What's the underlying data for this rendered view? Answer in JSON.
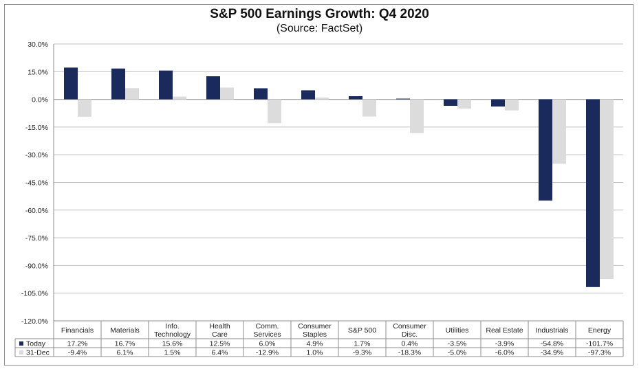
{
  "chart_data": {
    "type": "bar",
    "title": "S&P 500 Earnings Growth: Q4 2020",
    "subtitle": "(Source: FactSet)",
    "categories": [
      [
        "Financials"
      ],
      [
        "Materials"
      ],
      [
        "Info.",
        "Technology"
      ],
      [
        "Health",
        "Care"
      ],
      [
        "Comm.",
        "Services"
      ],
      [
        "Consumer",
        "Staples"
      ],
      [
        "S&P 500"
      ],
      [
        "Consumer",
        "Disc."
      ],
      [
        "Utilities"
      ],
      [
        "Real Estate"
      ],
      [
        "Industrials"
      ],
      [
        "Energy"
      ]
    ],
    "series": [
      {
        "name": "Today",
        "color": "#1b2a5c",
        "values": [
          17.2,
          16.7,
          15.6,
          12.5,
          6.0,
          4.9,
          1.7,
          0.4,
          -3.5,
          -3.9,
          -54.8,
          -101.7
        ],
        "labels": [
          "17.2%",
          "16.7%",
          "15.6%",
          "12.5%",
          "6.0%",
          "4.9%",
          "1.7%",
          "0.4%",
          "-3.5%",
          "-3.9%",
          "-54.8%",
          "-101.7%"
        ]
      },
      {
        "name": "31-Dec",
        "color": "#dcdcdc",
        "values": [
          -9.4,
          6.1,
          1.5,
          6.4,
          -12.9,
          1.0,
          -9.3,
          -18.3,
          -5.0,
          -6.0,
          -34.9,
          -97.3
        ],
        "labels": [
          "-9.4%",
          "6.1%",
          "1.5%",
          "6.4%",
          "-12.9%",
          "1.0%",
          "-9.3%",
          "-18.3%",
          "-5.0%",
          "-6.0%",
          "-34.9%",
          "-97.3%"
        ]
      }
    ],
    "ylim": [
      -120,
      30
    ],
    "ytick_step": 15,
    "ytick_labels": [
      "30.0%",
      "15.0%",
      "0.0%",
      "-15.0%",
      "-30.0%",
      "-45.0%",
      "-60.0%",
      "-75.0%",
      "-90.0%",
      "-105.0%",
      "-120.0%"
    ],
    "grid": true,
    "legend": "data-table-bottom",
    "gridline_color": "#bfbfbf"
  }
}
